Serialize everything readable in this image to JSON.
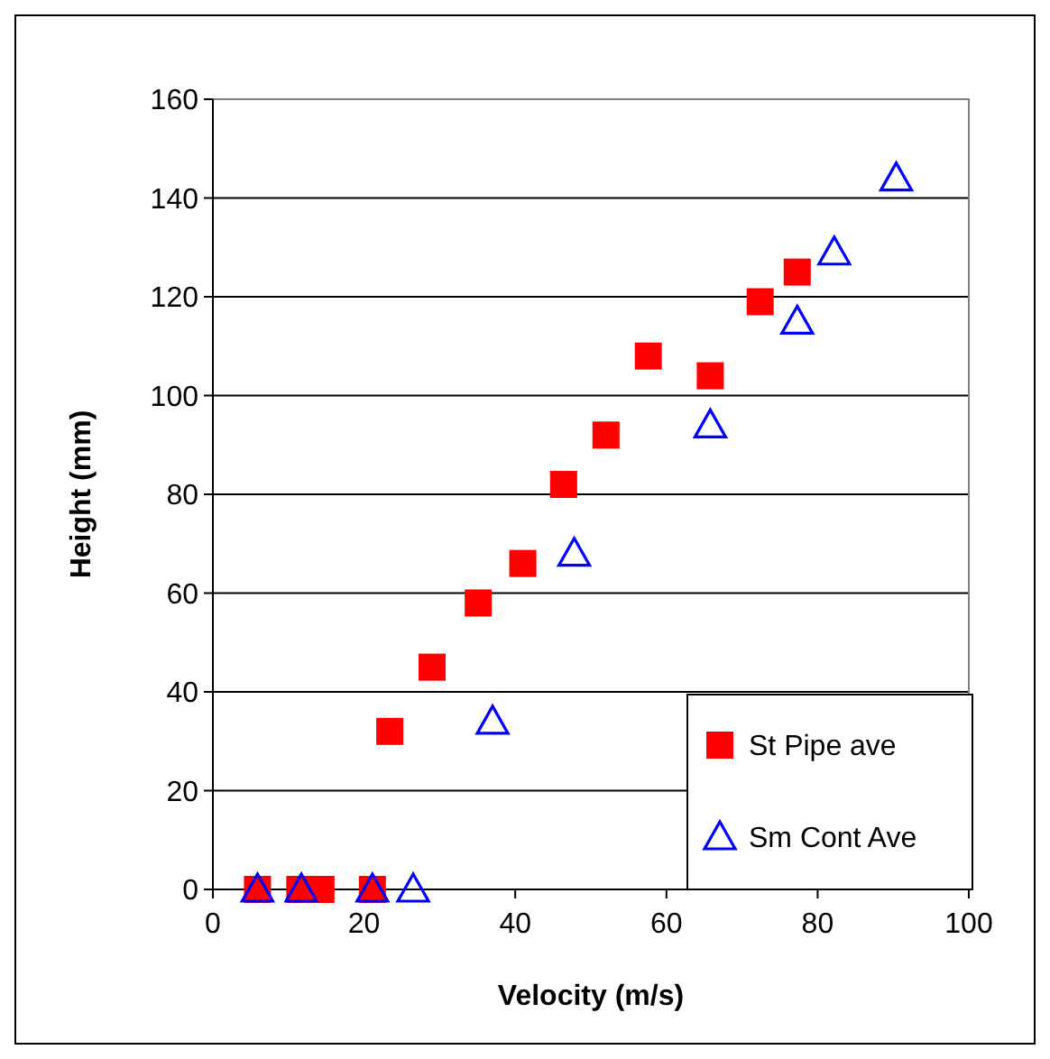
{
  "chart_data": {
    "type": "scatter",
    "xlabel": "Velocity (m/s)",
    "ylabel": "Height (mm)",
    "xlim": [
      0,
      100
    ],
    "xticks": [
      0,
      20,
      40,
      60,
      80,
      100
    ],
    "ylim": [
      0,
      160
    ],
    "yticks": [
      0,
      20,
      40,
      60,
      80,
      100,
      120,
      140,
      160
    ],
    "grid": "y",
    "legend": "bottom right",
    "series": [
      {
        "name": "St Pipe ave",
        "color": "#ff0000",
        "marker": "square",
        "x": [
          5.9,
          11.5,
          14.3,
          21.1,
          23.4,
          29.0,
          35.1,
          41.0,
          46.4,
          52.0,
          57.6,
          65.8,
          72.4,
          77.3
        ],
        "values": [
          0,
          0,
          0,
          0,
          32,
          45,
          58,
          66,
          82,
          92,
          108,
          104,
          119,
          125
        ]
      },
      {
        "name": "Sm Cont Ave",
        "color": "#0000ff",
        "marker": "triangle",
        "x": [
          5.9,
          11.7,
          21.1,
          26.5,
          37.0,
          47.8,
          65.8,
          77.3,
          82.2,
          90.4
        ],
        "values": [
          0,
          0,
          0,
          0,
          34,
          68,
          94,
          115,
          129,
          144
        ]
      }
    ]
  }
}
